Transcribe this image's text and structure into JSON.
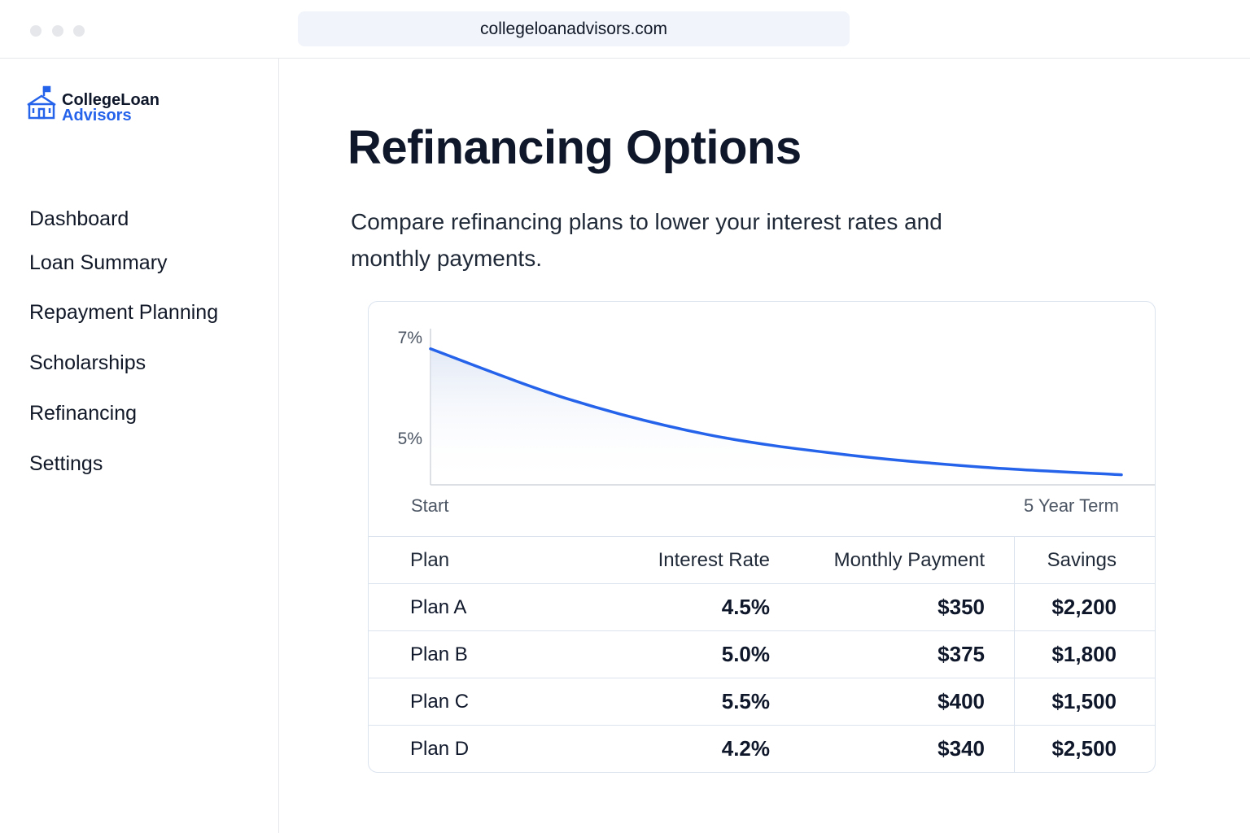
{
  "browser": {
    "url": "collegeloanadvisors.com"
  },
  "logo": {
    "line1": "CollegeLoan",
    "line2": "Advisors"
  },
  "nav": [
    "Dashboard",
    "Loan Summary",
    "Repayment Planning",
    "Scholarships",
    "Refinancing",
    "Settings"
  ],
  "header": {
    "title": "Refinancing Options",
    "subtitle": "Compare refinancing plans to lower your interest rates and monthly payments."
  },
  "chart_data": {
    "type": "line",
    "x": [
      0,
      1,
      2,
      3,
      4,
      5
    ],
    "values": [
      6.8,
      5.8,
      5.1,
      4.7,
      4.45,
      4.3
    ],
    "color": "#2563eb",
    "xlim": [
      0,
      5
    ],
    "xticks": [
      {
        "value": 0,
        "label": "Start"
      },
      {
        "value": 5,
        "label": "5 Year Term"
      }
    ],
    "ylim": [
      4.1,
      7.2
    ],
    "yticks": [
      {
        "value": 5,
        "label": "5%"
      },
      {
        "value": 7,
        "label": "7%"
      }
    ],
    "grid": false
  },
  "table": {
    "columns": [
      "Plan",
      "Interest Rate",
      "Monthly Payment",
      "Savings"
    ],
    "rows": [
      [
        "Plan A",
        "4.5%",
        "$350",
        "$2,200"
      ],
      [
        "Plan B",
        "5.0%",
        "$375",
        "$1,800"
      ],
      [
        "Plan C",
        "5.5%",
        "$400",
        "$1,500"
      ],
      [
        "Plan D",
        "4.2%",
        "$340",
        "$2,500"
      ]
    ]
  }
}
